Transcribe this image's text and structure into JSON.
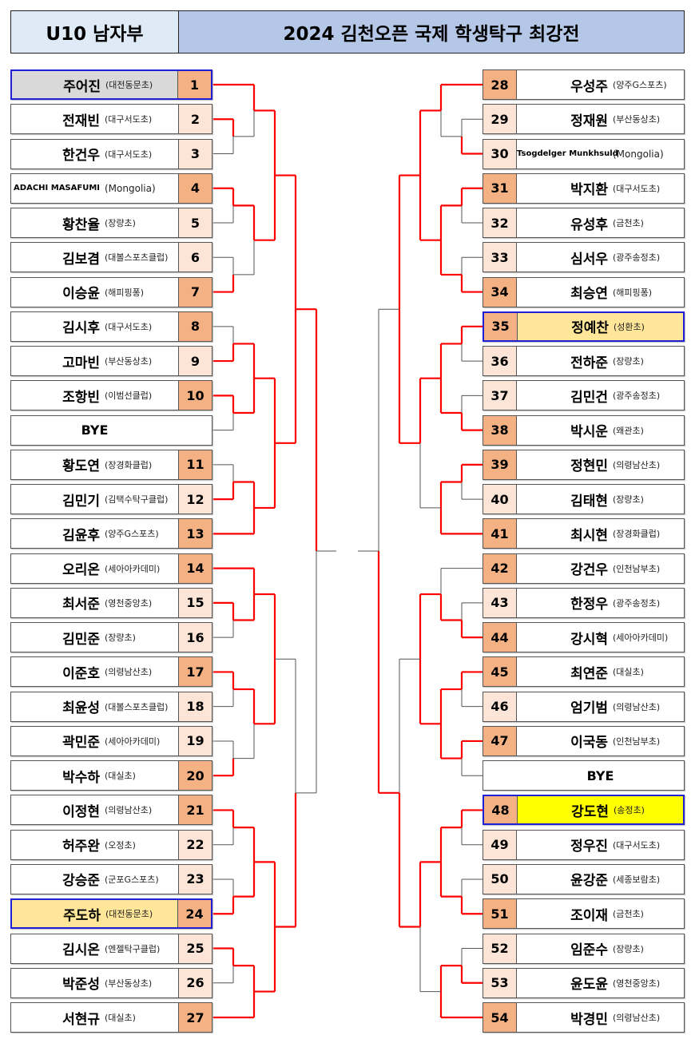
{
  "header": {
    "division": "U10 남자부",
    "title": "2024 김천오픈 국제 학생탁구 최강전"
  },
  "colors": {
    "winner_number": "#f4b183",
    "other_number": "#fce4d6",
    "advance_line": "#ff0000",
    "bracket_line": "#555555",
    "highlight_border": "#1f1fd6",
    "highlight_gray": "#d9d9d9",
    "highlight_gold": "#ffe699",
    "highlight_yellow": "#ffff00"
  },
  "left": [
    {
      "num": "1",
      "name": "주어진",
      "school": "(대전동문초)",
      "tone": "dark",
      "highlight": "gray"
    },
    {
      "num": "2",
      "name": "전재빈",
      "school": "(대구서도초)",
      "tone": "light"
    },
    {
      "num": "3",
      "name": "한건우",
      "school": "(대구서도초)",
      "tone": "light"
    },
    {
      "num": "4",
      "name": "ADACHI MASAFUMI",
      "school": "(Mongolia)",
      "tone": "dark",
      "small": true
    },
    {
      "num": "5",
      "name": "황찬율",
      "school": "(장량초)",
      "tone": "light"
    },
    {
      "num": "6",
      "name": "김보겸",
      "school": "(대볼스포츠클럽)",
      "tone": "light"
    },
    {
      "num": "7",
      "name": "이승윤",
      "school": "(해피핑퐁)",
      "tone": "dark"
    },
    {
      "num": "8",
      "name": "김시후",
      "school": "(대구서도초)",
      "tone": "dark"
    },
    {
      "num": "9",
      "name": "고마빈",
      "school": "(부산동상초)",
      "tone": "light"
    },
    {
      "num": "10",
      "name": "조항빈",
      "school": "(이범선클럽)",
      "tone": "dark"
    },
    {
      "name": "BYE",
      "bye": true
    },
    {
      "num": "11",
      "name": "황도연",
      "school": "(장경화클럽)",
      "tone": "dark"
    },
    {
      "num": "12",
      "name": "김민기",
      "school": "(김택수탁구클럽)",
      "tone": "light"
    },
    {
      "num": "13",
      "name": "김윤후",
      "school": "(양주G스포츠)",
      "tone": "dark"
    },
    {
      "num": "14",
      "name": "오리온",
      "school": "(세아아카데미)",
      "tone": "dark"
    },
    {
      "num": "15",
      "name": "최서준",
      "school": "(영천중앙초)",
      "tone": "light"
    },
    {
      "num": "16",
      "name": "김민준",
      "school": "(장량초)",
      "tone": "light"
    },
    {
      "num": "17",
      "name": "이준호",
      "school": "(의령남산초)",
      "tone": "dark"
    },
    {
      "num": "18",
      "name": "최윤성",
      "school": "(대볼스포츠클럽)",
      "tone": "light"
    },
    {
      "num": "19",
      "name": "곽민준",
      "school": "(세아아카데미)",
      "tone": "light"
    },
    {
      "num": "20",
      "name": "박수하",
      "school": "(대실초)",
      "tone": "dark"
    },
    {
      "num": "21",
      "name": "이정현",
      "school": "(의령남산초)",
      "tone": "dark"
    },
    {
      "num": "22",
      "name": "허주완",
      "school": "(오정초)",
      "tone": "light"
    },
    {
      "num": "23",
      "name": "강승준",
      "school": "(군포G스포츠)",
      "tone": "light"
    },
    {
      "num": "24",
      "name": "주도하",
      "school": "(대전동문초)",
      "tone": "dark",
      "highlight": "gold"
    },
    {
      "num": "25",
      "name": "김시온",
      "school": "(엔젤탁구클럽)",
      "tone": "light"
    },
    {
      "num": "26",
      "name": "박준성",
      "school": "(부산동상초)",
      "tone": "light"
    },
    {
      "num": "27",
      "name": "서현규",
      "school": "(대실초)",
      "tone": "dark"
    }
  ],
  "right": [
    {
      "num": "28",
      "name": "우성주",
      "school": "(양주G스포츠)",
      "tone": "dark"
    },
    {
      "num": "29",
      "name": "정재원",
      "school": "(부산동상초)",
      "tone": "light"
    },
    {
      "num": "30",
      "name": "Tsogdelger Munkhsuld",
      "school": "(Mongolia)",
      "tone": "light",
      "small": true
    },
    {
      "num": "31",
      "name": "박지환",
      "school": "(대구서도초)",
      "tone": "dark"
    },
    {
      "num": "32",
      "name": "유성후",
      "school": "(금천초)",
      "tone": "light"
    },
    {
      "num": "33",
      "name": "심서우",
      "school": "(광주송정초)",
      "tone": "light"
    },
    {
      "num": "34",
      "name": "최승연",
      "school": "(해피핑퐁)",
      "tone": "dark"
    },
    {
      "num": "35",
      "name": "정예찬",
      "school": "(성환초)",
      "tone": "dark",
      "highlight": "gold"
    },
    {
      "num": "36",
      "name": "전하준",
      "school": "(장량초)",
      "tone": "light"
    },
    {
      "num": "37",
      "name": "김민건",
      "school": "(광주송정초)",
      "tone": "light"
    },
    {
      "num": "38",
      "name": "박시운",
      "school": "(왜관초)",
      "tone": "dark"
    },
    {
      "num": "39",
      "name": "정현민",
      "school": "(의령남산초)",
      "tone": "dark"
    },
    {
      "num": "40",
      "name": "김태현",
      "school": "(장량초)",
      "tone": "light"
    },
    {
      "num": "41",
      "name": "최시현",
      "school": "(장경화클럽)",
      "tone": "dark"
    },
    {
      "num": "42",
      "name": "강건우",
      "school": "(인천남부초)",
      "tone": "dark"
    },
    {
      "num": "43",
      "name": "한정우",
      "school": "(광주송정초)",
      "tone": "light"
    },
    {
      "num": "44",
      "name": "강시혁",
      "school": "(세아아카데미)",
      "tone": "dark"
    },
    {
      "num": "45",
      "name": "최연준",
      "school": "(대실초)",
      "tone": "dark"
    },
    {
      "num": "46",
      "name": "엄기범",
      "school": "(의령남산초)",
      "tone": "light"
    },
    {
      "num": "47",
      "name": "이국동",
      "school": "(인천남부초)",
      "tone": "dark"
    },
    {
      "name": "BYE",
      "bye": true
    },
    {
      "num": "48",
      "name": "강도현",
      "school": "(송정초)",
      "tone": "dark",
      "highlight": "yellow"
    },
    {
      "num": "49",
      "name": "정우진",
      "school": "(대구서도초)",
      "tone": "light"
    },
    {
      "num": "50",
      "name": "윤강준",
      "school": "(세종보람초)",
      "tone": "light"
    },
    {
      "num": "51",
      "name": "조이재",
      "school": "(금천초)",
      "tone": "dark"
    },
    {
      "num": "52",
      "name": "임준수",
      "school": "(장량초)",
      "tone": "light"
    },
    {
      "num": "53",
      "name": "윤도윤",
      "school": "(영천중앙초)",
      "tone": "light"
    },
    {
      "num": "54",
      "name": "박경민",
      "school": "(의령남산초)",
      "tone": "dark"
    }
  ]
}
